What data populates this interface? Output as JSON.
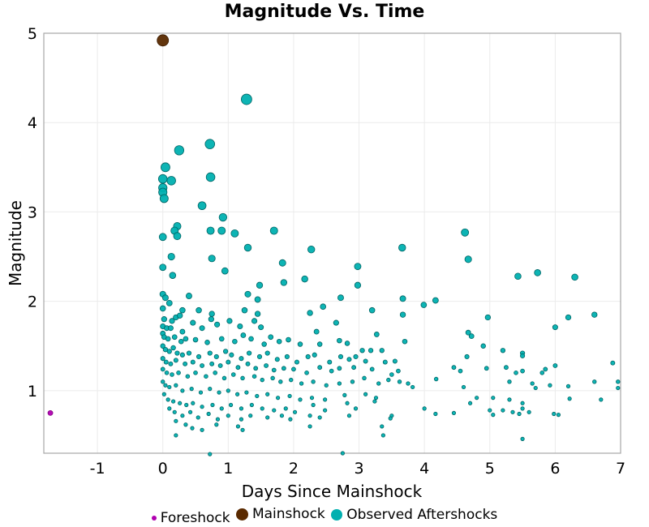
{
  "chart_data": {
    "type": "scatter",
    "title": "Magnitude Vs. Time",
    "xlabel": "Days Since Mainshock",
    "ylabel": "Magnitude",
    "xlim": [
      -1.82,
      7
    ],
    "ylim": [
      0.3,
      5
    ],
    "xticks": [
      -1,
      0,
      1,
      2,
      3,
      4,
      5,
      6,
      7
    ],
    "yticks": [
      1,
      2,
      3,
      4,
      5
    ],
    "grid": true,
    "legend_position": "bottom",
    "series": [
      {
        "name": "Foreshock",
        "color": "#b000b0",
        "points": [
          [
            -1.72,
            0.75
          ]
        ]
      },
      {
        "name": "Mainshock",
        "color": "#5a2a00",
        "points": [
          [
            0.0,
            4.92
          ]
        ]
      },
      {
        "name": "Observed Aftershocks",
        "color": "#00b0b0",
        "points": [
          [
            1.28,
            4.26
          ],
          [
            0.25,
            3.69
          ],
          [
            0.72,
            3.76
          ],
          [
            0.04,
            3.5
          ],
          [
            0.0,
            3.37
          ],
          [
            0.13,
            3.35
          ],
          [
            0.73,
            3.39
          ],
          [
            0.0,
            3.27
          ],
          [
            0.0,
            3.22
          ],
          [
            0.02,
            3.15
          ],
          [
            0.6,
            3.07
          ],
          [
            0.92,
            2.94
          ],
          [
            0.22,
            2.84
          ],
          [
            0.18,
            2.79
          ],
          [
            0.22,
            2.73
          ],
          [
            0.73,
            2.79
          ],
          [
            0.9,
            2.79
          ],
          [
            1.1,
            2.76
          ],
          [
            0.0,
            2.72
          ],
          [
            1.7,
            2.79
          ],
          [
            1.3,
            2.6
          ],
          [
            0.13,
            2.5
          ],
          [
            0.75,
            2.48
          ],
          [
            0.0,
            2.38
          ],
          [
            0.95,
            2.34
          ],
          [
            1.83,
            2.43
          ],
          [
            2.27,
            2.58
          ],
          [
            3.66,
            2.6
          ],
          [
            4.62,
            2.77
          ],
          [
            4.67,
            2.47
          ],
          [
            2.98,
            2.39
          ],
          [
            5.43,
            2.28
          ],
          [
            5.73,
            2.32
          ],
          [
            6.3,
            2.27
          ],
          [
            0.15,
            2.29
          ],
          [
            1.48,
            2.18
          ],
          [
            1.85,
            2.21
          ],
          [
            2.17,
            2.25
          ],
          [
            2.98,
            2.18
          ],
          [
            0.4,
            2.06
          ],
          [
            1.3,
            2.08
          ],
          [
            1.45,
            2.02
          ],
          [
            2.72,
            2.04
          ],
          [
            3.67,
            2.03
          ],
          [
            4.17,
            2.01
          ],
          [
            3.99,
            1.96
          ],
          [
            0.0,
            2.08
          ],
          [
            0.04,
            2.04
          ],
          [
            0.1,
            1.98
          ],
          [
            0.3,
            1.9
          ],
          [
            0.0,
            1.92
          ],
          [
            0.55,
            1.9
          ],
          [
            0.75,
            1.86
          ],
          [
            1.25,
            1.9
          ],
          [
            1.45,
            1.86
          ],
          [
            2.25,
            1.87
          ],
          [
            2.45,
            1.94
          ],
          [
            3.2,
            1.9
          ],
          [
            3.67,
            1.85
          ],
          [
            4.97,
            1.82
          ],
          [
            6.2,
            1.82
          ],
          [
            6.6,
            1.85
          ],
          [
            6.0,
            1.71
          ],
          [
            0.02,
            1.8
          ],
          [
            0.14,
            1.78
          ],
          [
            0.2,
            1.82
          ],
          [
            0.26,
            1.84
          ],
          [
            0.0,
            1.72
          ],
          [
            0.06,
            1.7
          ],
          [
            0.12,
            1.7
          ],
          [
            0.3,
            1.66
          ],
          [
            0.46,
            1.76
          ],
          [
            0.6,
            1.7
          ],
          [
            0.74,
            1.8
          ],
          [
            0.83,
            1.74
          ],
          [
            1.02,
            1.78
          ],
          [
            1.18,
            1.72
          ],
          [
            1.5,
            1.71
          ],
          [
            1.4,
            1.78
          ],
          [
            2.35,
            1.66
          ],
          [
            2.65,
            1.76
          ],
          [
            3.27,
            1.63
          ],
          [
            4.67,
            1.65
          ],
          [
            4.72,
            1.61
          ],
          [
            4.9,
            1.5
          ],
          [
            0.0,
            1.64
          ],
          [
            0.02,
            1.6
          ],
          [
            0.08,
            1.58
          ],
          [
            0.18,
            1.6
          ],
          [
            0.28,
            1.55
          ],
          [
            0.35,
            1.58
          ],
          [
            0.5,
            1.57
          ],
          [
            0.68,
            1.54
          ],
          [
            0.9,
            1.58
          ],
          [
            1.1,
            1.55
          ],
          [
            1.23,
            1.62
          ],
          [
            1.35,
            1.58
          ],
          [
            1.55,
            1.52
          ],
          [
            1.65,
            1.6
          ],
          [
            1.78,
            1.55
          ],
          [
            1.92,
            1.57
          ],
          [
            2.1,
            1.52
          ],
          [
            2.4,
            1.52
          ],
          [
            2.7,
            1.56
          ],
          [
            2.82,
            1.53
          ],
          [
            3.05,
            1.45
          ],
          [
            3.18,
            1.45
          ],
          [
            3.35,
            1.45
          ],
          [
            3.7,
            1.55
          ],
          [
            5.2,
            1.45
          ],
          [
            5.5,
            1.42
          ],
          [
            5.5,
            1.39
          ],
          [
            4.65,
            1.38
          ],
          [
            0.0,
            1.5
          ],
          [
            0.04,
            1.46
          ],
          [
            0.1,
            1.44
          ],
          [
            0.16,
            1.48
          ],
          [
            0.22,
            1.42
          ],
          [
            0.3,
            1.4
          ],
          [
            0.4,
            1.42
          ],
          [
            0.55,
            1.38
          ],
          [
            0.72,
            1.42
          ],
          [
            0.82,
            1.38
          ],
          [
            0.96,
            1.44
          ],
          [
            1.05,
            1.4
          ],
          [
            1.2,
            1.36
          ],
          [
            1.32,
            1.42
          ],
          [
            1.48,
            1.38
          ],
          [
            1.6,
            1.42
          ],
          [
            1.75,
            1.35
          ],
          [
            1.9,
            1.38
          ],
          [
            2.05,
            1.32
          ],
          [
            2.22,
            1.38
          ],
          [
            2.32,
            1.4
          ],
          [
            2.55,
            1.32
          ],
          [
            2.72,
            1.38
          ],
          [
            2.85,
            1.35
          ],
          [
            2.95,
            1.38
          ],
          [
            3.1,
            1.33
          ],
          [
            3.4,
            1.32
          ],
          [
            3.55,
            1.33
          ],
          [
            0.0,
            1.36
          ],
          [
            0.05,
            1.32
          ],
          [
            0.12,
            1.3
          ],
          [
            0.2,
            1.34
          ],
          [
            0.34,
            1.3
          ],
          [
            0.46,
            1.32
          ],
          [
            0.6,
            1.28
          ],
          [
            0.75,
            1.3
          ],
          [
            0.88,
            1.28
          ],
          [
            1.0,
            1.32
          ],
          [
            1.15,
            1.26
          ],
          [
            1.3,
            1.3
          ],
          [
            1.42,
            1.25
          ],
          [
            1.58,
            1.28
          ],
          [
            1.7,
            1.23
          ],
          [
            1.85,
            1.25
          ],
          [
            2.0,
            1.24
          ],
          [
            2.2,
            1.2
          ],
          [
            2.4,
            1.26
          ],
          [
            2.58,
            1.22
          ],
          [
            2.7,
            1.25
          ],
          [
            2.92,
            1.26
          ],
          [
            3.2,
            1.24
          ],
          [
            3.5,
            1.18
          ],
          [
            3.6,
            1.22
          ],
          [
            4.45,
            1.26
          ],
          [
            4.55,
            1.22
          ],
          [
            4.95,
            1.25
          ],
          [
            5.25,
            1.26
          ],
          [
            5.5,
            1.22
          ],
          [
            5.4,
            1.2
          ],
          [
            5.8,
            1.2
          ],
          [
            5.85,
            1.24
          ],
          [
            6.0,
            1.28
          ],
          [
            6.88,
            1.31
          ],
          [
            6.96,
            1.1
          ],
          [
            6.96,
            1.03
          ],
          [
            0.0,
            1.24
          ],
          [
            0.06,
            1.2
          ],
          [
            0.14,
            1.18
          ],
          [
            0.24,
            1.2
          ],
          [
            0.38,
            1.16
          ],
          [
            0.5,
            1.2
          ],
          [
            0.66,
            1.16
          ],
          [
            0.8,
            1.2
          ],
          [
            0.94,
            1.14
          ],
          [
            1.08,
            1.18
          ],
          [
            1.22,
            1.14
          ],
          [
            1.4,
            1.16
          ],
          [
            1.52,
            1.12
          ],
          [
            1.68,
            1.14
          ],
          [
            1.8,
            1.1
          ],
          [
            1.96,
            1.12
          ],
          [
            2.12,
            1.08
          ],
          [
            2.3,
            1.1
          ],
          [
            2.5,
            1.06
          ],
          [
            2.7,
            1.08
          ],
          [
            2.9,
            1.1
          ],
          [
            3.08,
            1.14
          ],
          [
            3.3,
            1.08
          ],
          [
            3.45,
            1.12
          ],
          [
            3.62,
            1.1
          ],
          [
            3.75,
            1.08
          ],
          [
            3.82,
            1.04
          ],
          [
            4.18,
            1.13
          ],
          [
            4.6,
            1.04
          ],
          [
            5.3,
            1.1
          ],
          [
            5.65,
            1.08
          ],
          [
            5.7,
            1.03
          ],
          [
            5.92,
            1.06
          ],
          [
            6.2,
            1.05
          ],
          [
            6.6,
            1.1
          ],
          [
            0.0,
            1.1
          ],
          [
            0.04,
            1.06
          ],
          [
            0.1,
            1.04
          ],
          [
            0.2,
            1.06
          ],
          [
            0.3,
            1.0
          ],
          [
            0.44,
            1.02
          ],
          [
            0.58,
            0.98
          ],
          [
            0.72,
            1.02
          ],
          [
            0.86,
            0.98
          ],
          [
            1.0,
            1.0
          ],
          [
            1.14,
            0.96
          ],
          [
            1.28,
            0.98
          ],
          [
            1.44,
            0.94
          ],
          [
            1.6,
            0.96
          ],
          [
            1.76,
            0.92
          ],
          [
            1.94,
            0.94
          ],
          [
            2.1,
            0.9
          ],
          [
            2.28,
            0.92
          ],
          [
            2.48,
            0.9
          ],
          [
            2.78,
            0.95
          ],
          [
            3.1,
            0.96
          ],
          [
            3.26,
            0.92
          ],
          [
            4.8,
            0.92
          ],
          [
            5.05,
            0.92
          ],
          [
            5.3,
            0.9
          ],
          [
            5.5,
            0.86
          ],
          [
            6.22,
            0.91
          ],
          [
            6.7,
            0.9
          ],
          [
            0.02,
            0.96
          ],
          [
            0.08,
            0.9
          ],
          [
            0.16,
            0.88
          ],
          [
            0.26,
            0.86
          ],
          [
            0.36,
            0.84
          ],
          [
            0.46,
            0.86
          ],
          [
            0.6,
            0.82
          ],
          [
            0.76,
            0.84
          ],
          [
            0.9,
            0.8
          ],
          [
            1.04,
            0.84
          ],
          [
            1.2,
            0.8
          ],
          [
            1.36,
            0.84
          ],
          [
            1.52,
            0.8
          ],
          [
            1.7,
            0.78
          ],
          [
            1.88,
            0.8
          ],
          [
            2.02,
            0.76
          ],
          [
            2.3,
            0.84
          ],
          [
            2.48,
            0.78
          ],
          [
            2.82,
            0.86
          ],
          [
            2.95,
            0.8
          ],
          [
            3.24,
            0.88
          ],
          [
            4.0,
            0.8
          ],
          [
            4.17,
            0.74
          ],
          [
            4.45,
            0.75
          ],
          [
            4.7,
            0.86
          ],
          [
            5.0,
            0.78
          ],
          [
            5.05,
            0.73
          ],
          [
            5.2,
            0.78
          ],
          [
            5.35,
            0.76
          ],
          [
            5.45,
            0.74
          ],
          [
            5.5,
            0.8
          ],
          [
            5.6,
            0.76
          ],
          [
            5.98,
            0.74
          ],
          [
            6.05,
            0.73
          ],
          [
            0.1,
            0.8
          ],
          [
            0.18,
            0.76
          ],
          [
            0.3,
            0.72
          ],
          [
            0.42,
            0.76
          ],
          [
            0.54,
            0.7
          ],
          [
            0.7,
            0.74
          ],
          [
            0.84,
            0.68
          ],
          [
            1.0,
            0.72
          ],
          [
            1.2,
            0.68
          ],
          [
            1.34,
            0.72
          ],
          [
            1.6,
            0.7
          ],
          [
            1.82,
            0.72
          ],
          [
            1.95,
            0.68
          ],
          [
            2.25,
            0.72
          ],
          [
            2.4,
            0.7
          ],
          [
            2.85,
            0.72
          ],
          [
            3.5,
            0.72
          ],
          [
            3.48,
            0.69
          ],
          [
            3.35,
            0.6
          ],
          [
            3.37,
            0.5
          ],
          [
            0.2,
            0.66
          ],
          [
            0.35,
            0.62
          ],
          [
            0.45,
            0.58
          ],
          [
            0.6,
            0.56
          ],
          [
            0.82,
            0.62
          ],
          [
            1.15,
            0.6
          ],
          [
            1.22,
            0.56
          ],
          [
            2.25,
            0.6
          ],
          [
            0.2,
            0.5
          ],
          [
            5.5,
            0.46
          ],
          [
            0.72,
            0.29
          ],
          [
            2.75,
            0.3
          ]
        ]
      }
    ]
  },
  "legend": {
    "items": [
      {
        "label": "Foreshock",
        "color": "#b000b0",
        "size": 6
      },
      {
        "label": "Mainshock",
        "color": "#5a2a00",
        "size": 15
      },
      {
        "label": "Observed Aftershocks",
        "color": "#00b0b0",
        "size": 14
      }
    ]
  }
}
